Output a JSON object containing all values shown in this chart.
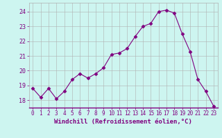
{
  "x": [
    0,
    1,
    2,
    3,
    4,
    5,
    6,
    7,
    8,
    9,
    10,
    11,
    12,
    13,
    14,
    15,
    16,
    17,
    18,
    19,
    20,
    21,
    22,
    23
  ],
  "y": [
    18.8,
    18.2,
    18.8,
    18.1,
    18.6,
    19.4,
    19.8,
    19.5,
    19.8,
    20.2,
    21.1,
    21.2,
    21.5,
    22.3,
    23.0,
    23.2,
    24.0,
    24.1,
    23.9,
    22.5,
    21.3,
    19.4,
    18.6,
    17.6
  ],
  "line_color": "#800080",
  "marker": "D",
  "marker_size": 2.5,
  "bg_color": "#cdf5f0",
  "grid_color": "#b0b0b0",
  "xlabel": "Windchill (Refroidissement éolien,°C)",
  "xlabel_color": "#800080",
  "tick_color": "#800080",
  "ylim": [
    17.5,
    24.6
  ],
  "yticks": [
    18,
    19,
    20,
    21,
    22,
    23,
    24
  ],
  "xticks": [
    0,
    1,
    2,
    3,
    4,
    5,
    6,
    7,
    8,
    9,
    10,
    11,
    12,
    13,
    14,
    15,
    16,
    17,
    18,
    19,
    20,
    21,
    22,
    23
  ],
  "tick_fontsize": 5.5,
  "xlabel_fontsize": 6.5
}
